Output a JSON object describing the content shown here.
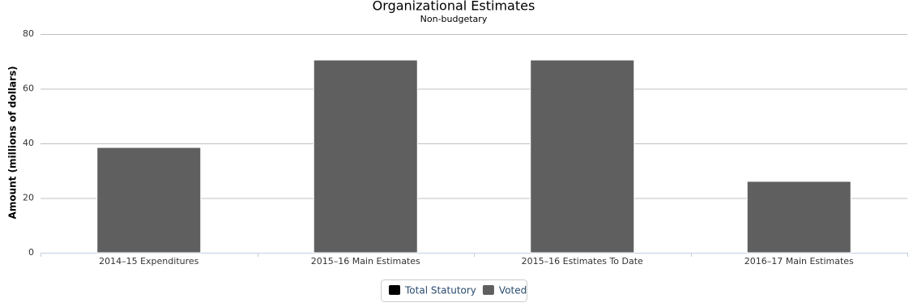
{
  "chart_data": {
    "type": "stacked-bar",
    "title": "Organizational Estimates",
    "subtitle": "Non-budgetary",
    "y_label": "Amount (millions of dollars)",
    "categories": [
      "2014–15 Expenditures",
      "2015–16 Main Estimates",
      "2015–16 Estimates To Date",
      "2016–17 Main Estimates"
    ],
    "series": [
      {
        "name": "Total Statutory",
        "color": "#000000",
        "values": [
          0,
          0,
          0,
          0
        ]
      },
      {
        "name": "Voted",
        "color": "#5f5f5f",
        "values": [
          38.5,
          70.5,
          70.5,
          26.1
        ]
      }
    ],
    "ylim": [
      0,
      80
    ],
    "yticks": [
      0,
      20,
      40,
      60,
      80
    ],
    "grid": true
  }
}
